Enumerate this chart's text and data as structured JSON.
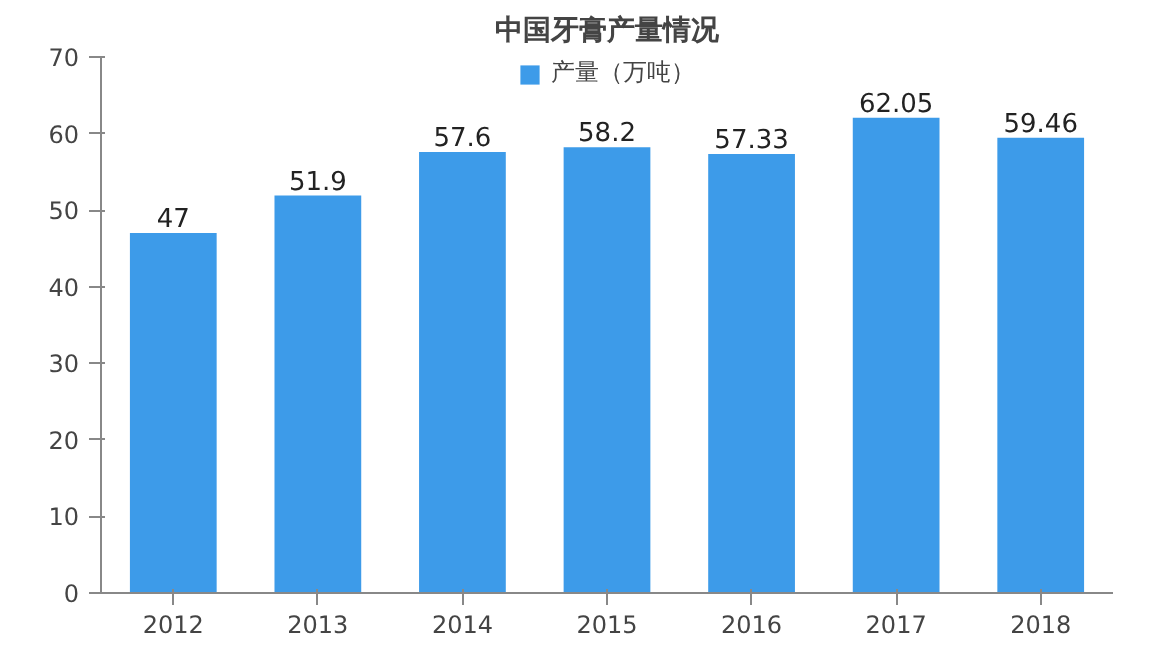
{
  "chart_data": {
    "type": "bar",
    "title": "中国牙膏产量情况",
    "categories": [
      "2012",
      "2013",
      "2014",
      "2015",
      "2016",
      "2017",
      "2018"
    ],
    "series": [
      {
        "name": "产量（万吨）",
        "color": "#3d9be9",
        "values": [
          47,
          51.9,
          57.6,
          58.2,
          57.33,
          62.05,
          59.46
        ]
      }
    ],
    "ylim": [
      0,
      70
    ],
    "yticks": [
      0,
      10,
      20,
      30,
      40,
      50,
      60,
      70
    ],
    "grid": false,
    "legend": "top",
    "data_labels": true
  }
}
